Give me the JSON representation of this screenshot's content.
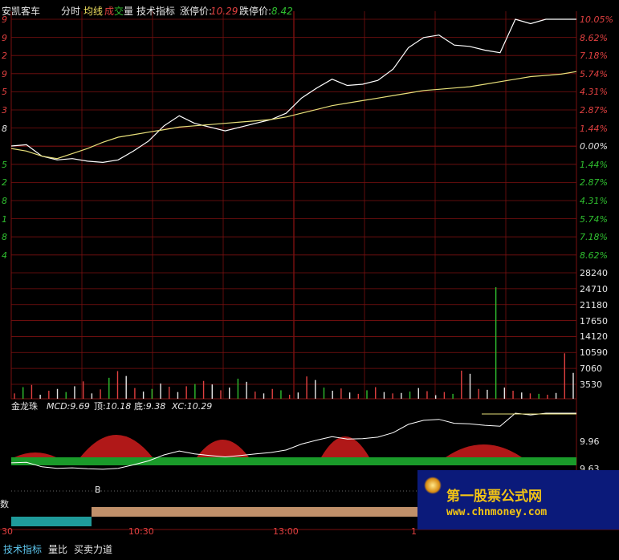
{
  "header": {
    "stock_name": "安凯客车",
    "mode_label": "分时",
    "avg_line_label": "均线",
    "volume_label_a": "成",
    "volume_label_b": "交",
    "volume_label_c": "量",
    "tech_indicator_label": "技术指标",
    "limit_up_label": "涨停价:",
    "limit_up_value": "10.29",
    "limit_down_label": "跌停价:",
    "limit_down_value": "8.42"
  },
  "price_axis": {
    "right_labels": [
      "10.05%",
      "8.62%",
      "7.18%",
      "5.74%",
      "4.31%",
      "2.87%",
      "1.44%",
      "0.00%",
      "1.44%",
      "2.87%",
      "4.31%",
      "5.74%",
      "7.18%",
      "8.62%"
    ],
    "left_labels": [
      "9",
      "9",
      "2",
      "9",
      "5",
      "3",
      "8",
      "5",
      "2",
      "8",
      "1",
      "8",
      "4"
    ]
  },
  "volume_axis": {
    "right_labels": [
      "28240",
      "24710",
      "21180",
      "17650",
      "14120",
      "10590",
      "7060",
      "3530"
    ]
  },
  "indicator": {
    "name": "金龙珠",
    "mcd_label": "MCD:",
    "mcd_value": "9.69",
    "top_label": "顶:",
    "top_value": "10.18",
    "bottom_label": "底:",
    "bottom_value": "9.38",
    "xc_label": "XC:",
    "xc_value": "10.29",
    "right_labels": [
      "9.96",
      "9.63"
    ],
    "marker_b": "B",
    "left_char": "数"
  },
  "time_axis": {
    "labels": [
      "30",
      "10:30",
      "13:00",
      "1"
    ]
  },
  "tabs": {
    "items": [
      "技术指标",
      "量比",
      "买卖力道"
    ]
  },
  "watermark": {
    "title": "第一股票公式网",
    "url": "www.chnmoney.com"
  },
  "colors": {
    "grid": "#7a1010",
    "up": "#e04040",
    "down": "#2fbf2f",
    "price_line": "#ffffff",
    "avg_line": "#e8e07a",
    "cyan_bar": "#1f9a9a",
    "tan_bar": "#c0906a",
    "logo_text": "#f3c414"
  },
  "chart_data": [
    {
      "type": "line",
      "title": "分时",
      "series": [
        {
          "name": "分时",
          "values": [
            0.0,
            0.1,
            -0.8,
            -1.1,
            -1.0,
            -1.2,
            -1.3,
            -1.1,
            -0.4,
            0.4,
            1.6,
            2.4,
            1.8,
            1.5,
            1.2,
            1.5,
            1.8,
            2.1,
            2.6,
            3.8,
            4.6,
            5.3,
            4.8,
            4.9,
            5.2,
            6.1,
            7.8,
            8.6,
            8.8,
            8.0,
            7.9,
            7.6,
            7.4,
            10.05,
            9.7,
            10.05,
            10.05,
            10.05
          ]
        },
        {
          "name": "均线",
          "values": [
            -0.2,
            -0.4,
            -0.8,
            -1.0,
            -0.6,
            -0.2,
            0.3,
            0.7,
            0.9,
            1.1,
            1.3,
            1.5,
            1.6,
            1.7,
            1.8,
            1.9,
            2.0,
            2.1,
            2.3,
            2.6,
            2.9,
            3.2,
            3.4,
            3.6,
            3.8,
            4.0,
            4.2,
            4.4,
            4.5,
            4.6,
            4.7,
            4.9,
            5.1,
            5.3,
            5.5,
            5.6,
            5.7,
            5.9
          ]
        }
      ],
      "ylim": [
        -8.62,
        10.05
      ],
      "ylabel": "%"
    },
    {
      "type": "bar",
      "title": "成交量",
      "ylim": [
        0,
        28240
      ],
      "values": [
        1200,
        2600,
        3100,
        900,
        1800,
        2200,
        1500,
        2800,
        3900,
        1200,
        2100,
        4700,
        6200,
        5100,
        2400,
        1600,
        2200,
        3400,
        2700,
        1500,
        2800,
        3300,
        4000,
        3200,
        1900,
        2500,
        4500,
        3800,
        1600,
        1200,
        2200,
        1900,
        900,
        1400,
        5000,
        4200,
        2500,
        1800,
        2300,
        1400,
        1100,
        1900,
        2600,
        1500,
        1200,
        1300,
        1600,
        2400,
        1700,
        800,
        1500,
        1100,
        6300,
        5600,
        2200,
        2000,
        25000,
        2500,
        1800,
        1400,
        1200,
        1100,
        900,
        1300,
        10200,
        5800
      ]
    }
  ]
}
